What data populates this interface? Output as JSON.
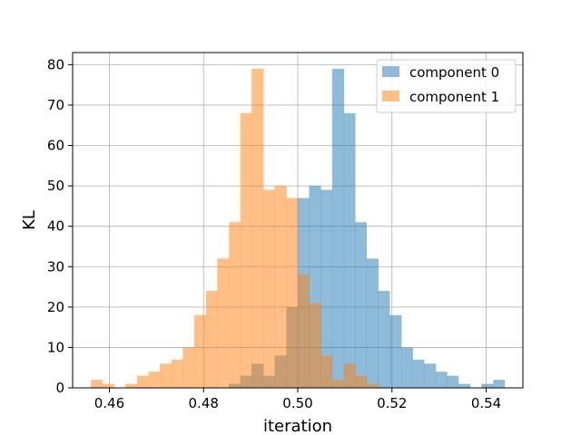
{
  "chart_data": {
    "type": "bar",
    "xlabel": "iteration",
    "ylabel": "KL",
    "xlim": [
      0.4522,
      0.5478
    ],
    "ylim": [
      0,
      83
    ],
    "xticks": [
      0.46,
      0.48,
      0.5,
      0.52,
      0.54
    ],
    "xtick_labels": [
      "0.46",
      "0.48",
      "0.50",
      "0.52",
      "0.54"
    ],
    "yticks": [
      0,
      10,
      20,
      30,
      40,
      50,
      60,
      70,
      80
    ],
    "ytick_labels": [
      "0",
      "10",
      "20",
      "30",
      "40",
      "50",
      "60",
      "70",
      "80"
    ],
    "grid": true,
    "legend_position": "top-right",
    "series": [
      {
        "name": "component 0",
        "color": "#1f77b4",
        "alpha": 0.5,
        "bins": [
          {
            "x0": 0.4854,
            "x1": 0.4878,
            "y": 1
          },
          {
            "x0": 0.4878,
            "x1": 0.4902,
            "y": 3
          },
          {
            "x0": 0.4902,
            "x1": 0.4927,
            "y": 6
          },
          {
            "x0": 0.4927,
            "x1": 0.4951,
            "y": 3
          },
          {
            "x0": 0.4951,
            "x1": 0.4976,
            "y": 8
          },
          {
            "x0": 0.4976,
            "x1": 0.5,
            "y": 20
          },
          {
            "x0": 0.5,
            "x1": 0.5024,
            "y": 47
          },
          {
            "x0": 0.5024,
            "x1": 0.5049,
            "y": 50
          },
          {
            "x0": 0.5049,
            "x1": 0.5073,
            "y": 49
          },
          {
            "x0": 0.5073,
            "x1": 0.5098,
            "y": 79
          },
          {
            "x0": 0.5098,
            "x1": 0.5122,
            "y": 68
          },
          {
            "x0": 0.5122,
            "x1": 0.5146,
            "y": 41
          },
          {
            "x0": 0.5146,
            "x1": 0.5171,
            "y": 32
          },
          {
            "x0": 0.5171,
            "x1": 0.5195,
            "y": 24
          },
          {
            "x0": 0.5195,
            "x1": 0.522,
            "y": 18
          },
          {
            "x0": 0.522,
            "x1": 0.5244,
            "y": 10
          },
          {
            "x0": 0.5244,
            "x1": 0.5268,
            "y": 7
          },
          {
            "x0": 0.5268,
            "x1": 0.5293,
            "y": 6
          },
          {
            "x0": 0.5293,
            "x1": 0.5317,
            "y": 4
          },
          {
            "x0": 0.5317,
            "x1": 0.5341,
            "y": 3
          },
          {
            "x0": 0.5341,
            "x1": 0.5366,
            "y": 1
          },
          {
            "x0": 0.539,
            "x1": 0.5415,
            "y": 1
          },
          {
            "x0": 0.5415,
            "x1": 0.5439,
            "y": 2
          }
        ]
      },
      {
        "name": "component 1",
        "color": "#ff7f0e",
        "alpha": 0.5,
        "bins": [
          {
            "x0": 0.4561,
            "x1": 0.4585,
            "y": 2
          },
          {
            "x0": 0.4585,
            "x1": 0.461,
            "y": 1
          },
          {
            "x0": 0.4634,
            "x1": 0.4659,
            "y": 1
          },
          {
            "x0": 0.4659,
            "x1": 0.4683,
            "y": 3
          },
          {
            "x0": 0.4683,
            "x1": 0.4707,
            "y": 4
          },
          {
            "x0": 0.4707,
            "x1": 0.4732,
            "y": 6
          },
          {
            "x0": 0.4732,
            "x1": 0.4756,
            "y": 7
          },
          {
            "x0": 0.4756,
            "x1": 0.478,
            "y": 10
          },
          {
            "x0": 0.478,
            "x1": 0.4805,
            "y": 18
          },
          {
            "x0": 0.4805,
            "x1": 0.4829,
            "y": 24
          },
          {
            "x0": 0.4829,
            "x1": 0.4854,
            "y": 32
          },
          {
            "x0": 0.4854,
            "x1": 0.4878,
            "y": 41
          },
          {
            "x0": 0.4878,
            "x1": 0.4902,
            "y": 68
          },
          {
            "x0": 0.4902,
            "x1": 0.4927,
            "y": 79
          },
          {
            "x0": 0.4927,
            "x1": 0.4951,
            "y": 49
          },
          {
            "x0": 0.4951,
            "x1": 0.4976,
            "y": 50
          },
          {
            "x0": 0.4976,
            "x1": 0.5,
            "y": 47
          },
          {
            "x0": 0.5,
            "x1": 0.5024,
            "y": 28
          },
          {
            "x0": 0.5024,
            "x1": 0.5049,
            "y": 21
          },
          {
            "x0": 0.5049,
            "x1": 0.5073,
            "y": 8
          },
          {
            "x0": 0.5073,
            "x1": 0.5098,
            "y": 2
          },
          {
            "x0": 0.5098,
            "x1": 0.5122,
            "y": 6
          },
          {
            "x0": 0.5122,
            "x1": 0.5146,
            "y": 3
          },
          {
            "x0": 0.5146,
            "x1": 0.5171,
            "y": 1
          }
        ]
      }
    ]
  }
}
